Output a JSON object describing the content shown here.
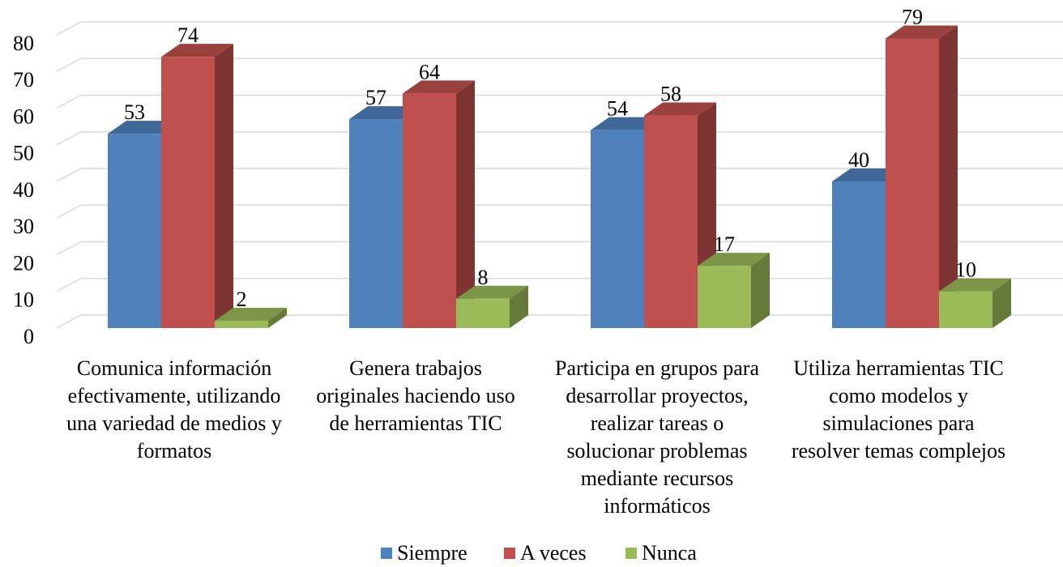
{
  "chart_data": {
    "type": "bar3d",
    "categories": [
      "Comunica información efectivamente, utilizando una variedad de medios y formatos",
      "Genera trabajos originales haciendo uso de herramientas TIC",
      "Participa en grupos para desarrollar proyectos, realizar tareas o solucionar problemas mediante recursos informáticos",
      "Utiliza herramientas TIC como modelos y simulaciones para resolver temas complejos"
    ],
    "series": [
      {
        "name": "Siempre",
        "color": "#4f81bd",
        "values": [
          53,
          57,
          54,
          40
        ]
      },
      {
        "name": "A veces",
        "color": "#c0504d",
        "values": [
          74,
          64,
          58,
          79
        ]
      },
      {
        "name": "Nunca",
        "color": "#9bbb59",
        "values": [
          2,
          8,
          17,
          10
        ]
      }
    ],
    "ylim": [
      0,
      80
    ],
    "yticks": [
      0,
      10,
      20,
      30,
      40,
      50,
      60,
      70,
      80
    ],
    "grid": true,
    "legend": "bottom"
  }
}
